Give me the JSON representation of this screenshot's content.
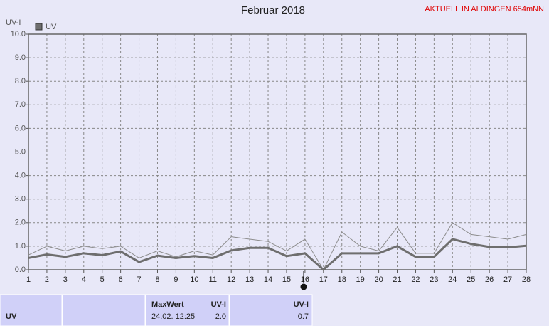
{
  "chart_data": {
    "type": "line",
    "title": "Februar 2018",
    "subtitle": "AKTUELL IN ALDINGEN 654mNN",
    "ylabel": "UV-I",
    "x": [
      1,
      2,
      3,
      4,
      5,
      6,
      7,
      8,
      9,
      10,
      11,
      12,
      13,
      14,
      15,
      16,
      17,
      18,
      19,
      20,
      21,
      22,
      23,
      24,
      25,
      26,
      27,
      28
    ],
    "series": [
      {
        "name": "UV",
        "color": "#6e6e6e",
        "values": [
          0.5,
          0.65,
          0.55,
          0.7,
          0.62,
          0.78,
          0.33,
          0.6,
          0.5,
          0.58,
          0.5,
          0.82,
          0.93,
          0.93,
          0.58,
          0.7,
          0.0,
          0.7,
          0.7,
          0.7,
          1.0,
          0.55,
          0.55,
          1.3,
          1.1,
          0.97,
          0.95,
          1.02
        ]
      },
      {
        "color": "#8c8c8c",
        "values": [
          0.63,
          1.0,
          0.8,
          1.0,
          0.9,
          1.0,
          0.5,
          0.8,
          0.55,
          0.8,
          0.63,
          1.4,
          1.3,
          1.2,
          0.8,
          1.3,
          0.0,
          1.6,
          1.0,
          0.8,
          1.8,
          0.7,
          0.7,
          2.0,
          1.5,
          1.4,
          1.3,
          1.5
        ]
      }
    ],
    "xlim": [
      1,
      28
    ],
    "xticks": [
      1,
      2,
      3,
      4,
      5,
      6,
      7,
      8,
      9,
      10,
      11,
      12,
      13,
      14,
      15,
      16,
      17,
      18,
      19,
      20,
      21,
      22,
      23,
      24,
      25,
      26,
      27,
      28
    ],
    "ylim": [
      0,
      10
    ],
    "yticks": [
      {
        "value": 0,
        "label": "0.0"
      },
      {
        "value": 1,
        "label": "1.0"
      },
      {
        "value": 2,
        "label": "2.0"
      },
      {
        "value": 3,
        "label": "3.0"
      },
      {
        "value": 4,
        "label": "4.0"
      },
      {
        "value": 5,
        "label": "5.0"
      },
      {
        "value": 6,
        "label": "6.0"
      },
      {
        "value": 7,
        "label": "7.0"
      },
      {
        "value": 8,
        "label": "8.0"
      },
      {
        "value": 9,
        "label": "9.0"
      },
      {
        "value": 10,
        "label": "10.0"
      }
    ],
    "grid": true
  },
  "table": {
    "row_label": "UV",
    "max_header": "MaxWert",
    "max_unit": "UV-I",
    "max_time": "24.02.  12:25",
    "max_value": "2.0",
    "current_unit": "UV-I",
    "current_value": "0.7"
  }
}
